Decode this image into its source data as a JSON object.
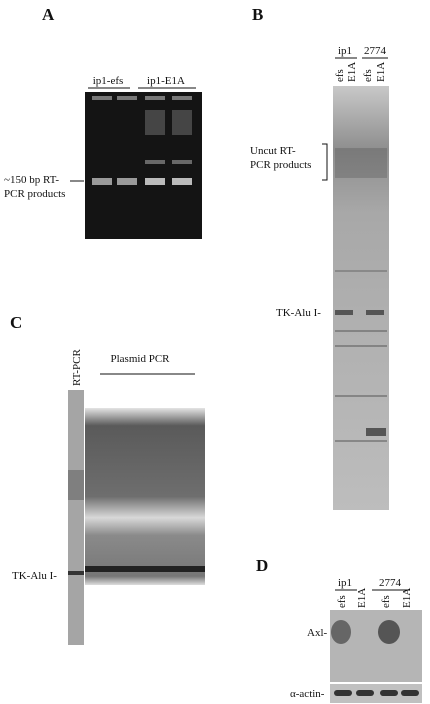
{
  "panels": {
    "A": {
      "label": "A",
      "lane_groups": [
        "ip1-efs",
        "ip1-E1A"
      ],
      "band_label": [
        "~150 bp RT-",
        "PCR products"
      ]
    },
    "B": {
      "label": "B",
      "groups": [
        "ip1",
        "2774"
      ],
      "lanes": [
        "efs",
        "E1A",
        "efs",
        "E1A"
      ],
      "uncut_label": [
        "Uncut RT-",
        "PCR products"
      ],
      "band_label": "TK-Alu I-"
    },
    "C": {
      "label": "C",
      "lanes": [
        "RT-PCR",
        "Plasmid PCR"
      ],
      "band_label": "TK-Alu I-"
    },
    "D": {
      "label": "D",
      "groups": [
        "ip1",
        "2774"
      ],
      "lanes": [
        "efs",
        "E1A",
        "efs",
        "E1A"
      ],
      "band_labels": [
        "Axl-",
        "α-actin-"
      ]
    }
  }
}
